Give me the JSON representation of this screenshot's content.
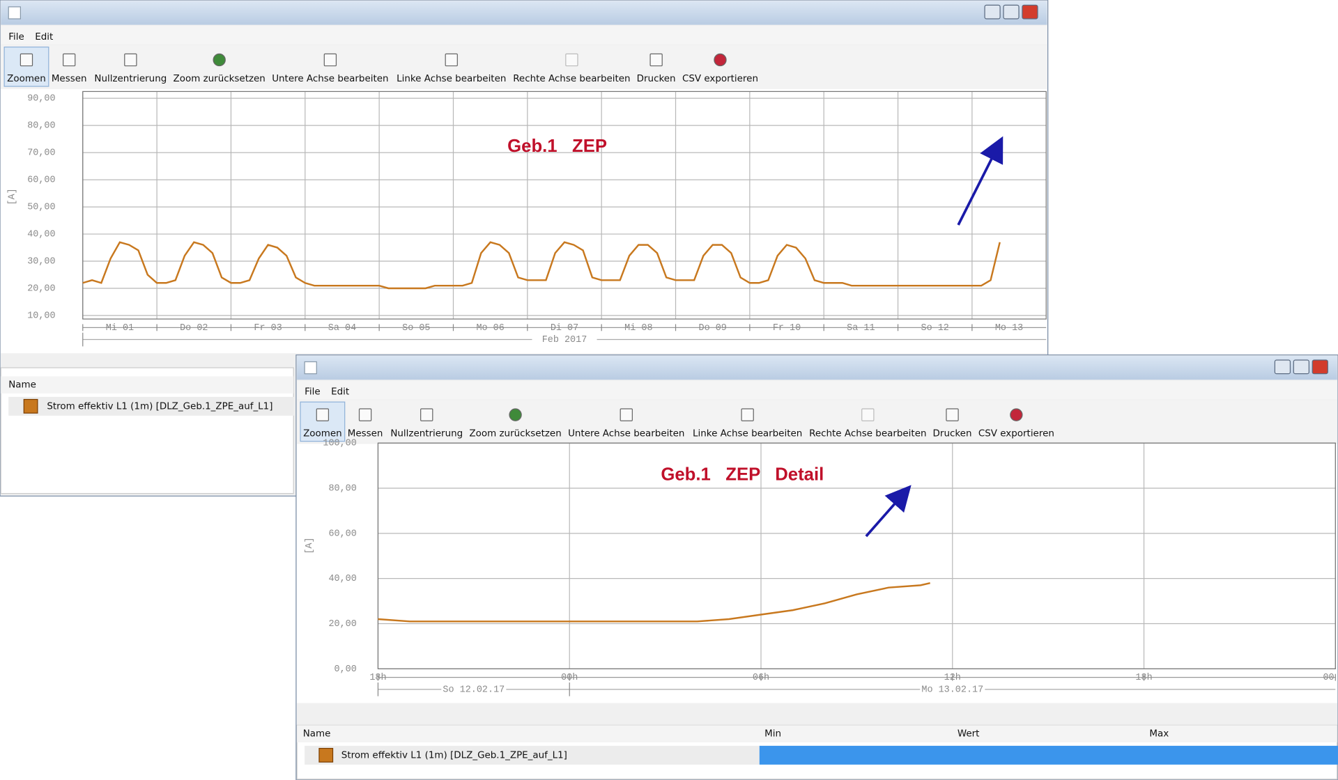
{
  "windows": [
    {
      "menu": [
        "File",
        "Edit"
      ],
      "toolbar": [
        {
          "label": "Zoomen",
          "enabled": true
        },
        {
          "label": "Messen",
          "enabled": true
        },
        {
          "label": "Nullzentrierung",
          "enabled": true
        },
        {
          "label": "Zoom zurücksetzen",
          "enabled": true
        },
        {
          "label": "Untere Achse bearbeiten",
          "enabled": true
        },
        {
          "label": "Linke Achse bearbeiten",
          "enabled": true
        },
        {
          "label": "Rechte Achse bearbeiten",
          "enabled": false
        },
        {
          "label": "Drucken",
          "enabled": true
        },
        {
          "label": "CSV exportieren",
          "enabled": true
        }
      ],
      "chart": {
        "type": "line",
        "title": "Geb.1   ZEP",
        "y_label": "[A]",
        "xlim": [
          1,
          14
        ],
        "xticks": [
          {
            "value": 1,
            "label": "Mi 01"
          },
          {
            "value": 2,
            "label": "Do 02"
          },
          {
            "value": 3,
            "label": "Fr 03"
          },
          {
            "value": 4,
            "label": "Sa 04"
          },
          {
            "value": 5,
            "label": "So 05"
          },
          {
            "value": 6,
            "label": "Mo 06"
          },
          {
            "value": 7,
            "label": "Di 07"
          },
          {
            "value": 8,
            "label": "Mi 08"
          },
          {
            "value": 9,
            "label": "Do 09"
          },
          {
            "value": 10,
            "label": "Fr 10"
          },
          {
            "value": 11,
            "label": "Sa 11"
          },
          {
            "value": 12,
            "label": "So 12"
          },
          {
            "value": 13,
            "label": "Mo 13"
          }
        ],
        "date_ticks": [
          {
            "value": 1,
            "label": "Feb 2017"
          }
        ],
        "ylim": [
          8.7,
          92.5
        ],
        "yticks": [
          {
            "value": 10,
            "label": "10,00"
          },
          {
            "value": 20,
            "label": "20,00"
          },
          {
            "value": 30,
            "label": "30,00"
          },
          {
            "value": 40,
            "label": "40,00"
          },
          {
            "value": 50,
            "label": "50,00"
          },
          {
            "value": 60,
            "label": "60,00"
          },
          {
            "value": 70,
            "label": "70,00"
          },
          {
            "value": 80,
            "label": "80,00"
          },
          {
            "value": 90,
            "label": "90,00"
          }
        ],
        "grid": true,
        "series": [
          {
            "name": "Strom effektiv L1 (1m) [DLZ_Geb.1_ZPE_auf_L1]",
            "color": "#c8781e",
            "x": [
              1,
              1.125,
              1.25,
              1.375,
              1.5,
              1.625,
              1.75,
              1.875,
              2,
              2.125,
              2.25,
              2.375,
              2.5,
              2.625,
              2.75,
              2.875,
              3,
              3.125,
              3.25,
              3.375,
              3.5,
              3.625,
              3.75,
              3.875,
              4,
              4.125,
              4.25,
              4.375,
              4.5,
              4.625,
              4.75,
              4.875,
              5,
              5.125,
              5.25,
              5.375,
              5.5,
              5.625,
              5.75,
              5.875,
              6,
              6.125,
              6.25,
              6.375,
              6.5,
              6.625,
              6.75,
              6.875,
              7,
              7.125,
              7.25,
              7.375,
              7.5,
              7.625,
              7.75,
              7.875,
              8,
              8.125,
              8.25,
              8.375,
              8.5,
              8.625,
              8.75,
              8.875,
              9,
              9.125,
              9.25,
              9.375,
              9.5,
              9.625,
              9.75,
              9.875,
              10,
              10.125,
              10.25,
              10.375,
              10.5,
              10.625,
              10.75,
              10.875,
              11,
              11.125,
              11.25,
              11.375,
              11.5,
              11.625,
              11.75,
              11.875,
              12,
              12.125,
              12.25,
              12.375,
              12.5,
              12.625,
              12.75,
              12.875,
              13,
              13.125,
              13.25,
              13.375
            ],
            "values": [
              22,
              23,
              22,
              31,
              37,
              36,
              34,
              25,
              22,
              22,
              23,
              32,
              37,
              36,
              33,
              24,
              22,
              22,
              23,
              31,
              36,
              35,
              32,
              24,
              22,
              21,
              21,
              21,
              21,
              21,
              21,
              21,
              21,
              20,
              20,
              20,
              20,
              20,
              21,
              21,
              21,
              21,
              22,
              33,
              37,
              36,
              33,
              24,
              23,
              23,
              23,
              33,
              37,
              36,
              34,
              24,
              23,
              23,
              23,
              32,
              36,
              36,
              33,
              24,
              23,
              23,
              23,
              32,
              36,
              36,
              33,
              24,
              22,
              22,
              23,
              32,
              36,
              35,
              31,
              23,
              22,
              22,
              22,
              21,
              21,
              21,
              21,
              21,
              21,
              21,
              21,
              21,
              21,
              21,
              21,
              21,
              21,
              21,
              23,
              37
            ]
          }
        ]
      },
      "legend": {
        "header": [
          "Name"
        ]
      }
    },
    {
      "menu": [
        "File",
        "Edit"
      ],
      "toolbar": [
        {
          "label": "Zoomen",
          "enabled": true
        },
        {
          "label": "Messen",
          "enabled": true
        },
        {
          "label": "Nullzentrierung",
          "enabled": true
        },
        {
          "label": "Zoom zurücksetzen",
          "enabled": true
        },
        {
          "label": "Untere Achse bearbeiten",
          "enabled": true
        },
        {
          "label": "Linke Achse bearbeiten",
          "enabled": true
        },
        {
          "label": "Rechte Achse bearbeiten",
          "enabled": false
        },
        {
          "label": "Drucken",
          "enabled": true
        },
        {
          "label": "CSV exportieren",
          "enabled": true
        }
      ],
      "chart": {
        "type": "line",
        "title": "Geb.1   ZEP   Detail",
        "y_label": "[A]",
        "xlim": [
          18,
          48
        ],
        "xticks": [
          {
            "value": 18,
            "label": "18h"
          },
          {
            "value": 24,
            "label": "00h"
          },
          {
            "value": 30,
            "label": "06h"
          },
          {
            "value": 36,
            "label": "12h"
          },
          {
            "value": 42,
            "label": "18h"
          },
          {
            "value": 48,
            "label": "00"
          }
        ],
        "date_ticks": [
          {
            "value": 18,
            "label": "So 12.02.17"
          },
          {
            "value": 24,
            "label": "Mo 13.02.17"
          }
        ],
        "ylim": [
          0,
          100
        ],
        "yticks": [
          {
            "value": 0,
            "label": "0,00"
          },
          {
            "value": 20,
            "label": "20,00"
          },
          {
            "value": 40,
            "label": "40,00"
          },
          {
            "value": 60,
            "label": "60,00"
          },
          {
            "value": 80,
            "label": "80,00"
          },
          {
            "value": 100,
            "label": "100,00"
          }
        ],
        "grid": true,
        "series": [
          {
            "name": "Strom effektiv L1 (1m) [DLZ_Geb.1_ZPE_auf_L1]",
            "color": "#c8781e",
            "x": [
              18,
              19,
              20,
              21,
              22,
              23,
              24,
              25,
              26,
              27,
              28,
              29,
              30,
              31,
              32,
              33,
              34,
              35,
              35.3
            ],
            "values": [
              22,
              21,
              21,
              21,
              21,
              21,
              21,
              21,
              21,
              21,
              21,
              22,
              24,
              26,
              29,
              33,
              36,
              37,
              38
            ]
          }
        ]
      },
      "legend": {
        "header": [
          "Name",
          "Min",
          "Wert",
          "Max"
        ]
      }
    }
  ]
}
